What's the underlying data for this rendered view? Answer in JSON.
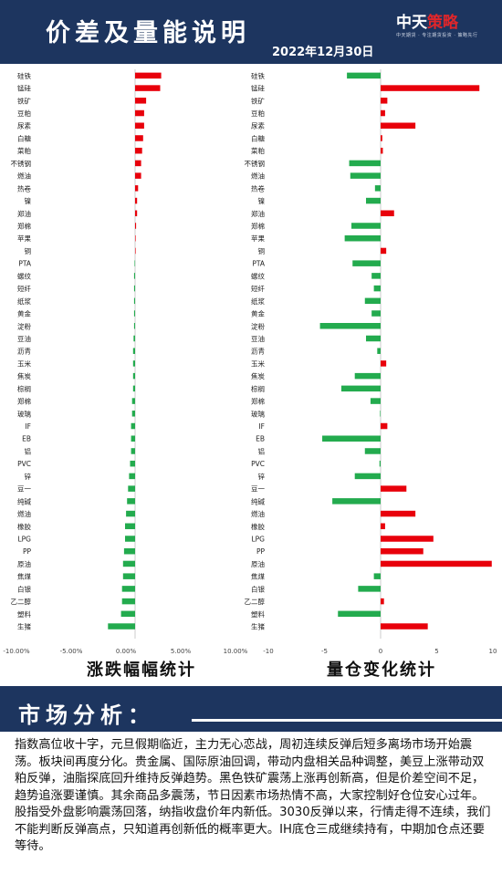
{
  "header": {
    "title": "价差及量能说明",
    "date": "2022年12月30日",
    "logo_main": "中天",
    "logo_accent": "策略",
    "logo_sub": "中天期货 · 专注期货投资 · 策略先行"
  },
  "chart_data": [
    {
      "type": "bar",
      "orientation": "horizontal",
      "title": "涨跌幅幅统计",
      "xlim": [
        -0.1,
        0.1
      ],
      "x_ticks": [
        "-10.00%",
        "-5.00%",
        "0.00%",
        "5.00%",
        "10.00%"
      ],
      "categories": [
        "硅铁",
        "锰硅",
        "铁矿",
        "豆粕",
        "尿素",
        "白糖",
        "菜粕",
        "不锈钢",
        "燃油",
        "热卷",
        "镍",
        "郑油",
        "郑棉",
        "苹果",
        "铜",
        "PTA",
        "螺纹",
        "短纤",
        "纸浆",
        "黄金",
        "淀粉",
        "豆油",
        "沥青",
        "玉米",
        "焦炭",
        "棕榈",
        "郑棉",
        "玻璃",
        "IF",
        "EB",
        "铝",
        "PVC",
        "锌",
        "豆一",
        "纯碱",
        "燃油",
        "橡胶",
        "LPG",
        "PP",
        "原油",
        "焦煤",
        "白银",
        "乙二醇",
        "塑料",
        "生猪"
      ],
      "values": [
        0.026,
        0.025,
        0.011,
        0.009,
        0.009,
        0.008,
        0.007,
        0.006,
        0.006,
        0.003,
        0.002,
        0.002,
        0.001,
        0.0005,
        0.0,
        -0.0005,
        -0.001,
        -0.001,
        -0.001,
        -0.001,
        -0.001,
        -0.0015,
        -0.002,
        -0.002,
        -0.002,
        -0.002,
        -0.003,
        -0.003,
        -0.004,
        -0.004,
        -0.004,
        -0.005,
        -0.006,
        -0.007,
        -0.008,
        -0.009,
        -0.01,
        -0.01,
        -0.011,
        -0.012,
        -0.012,
        -0.013,
        -0.013,
        -0.014,
        -0.027
      ],
      "positive_color": "#e8000b",
      "negative_color": "#23ab4e"
    },
    {
      "type": "bar",
      "orientation": "horizontal",
      "title": "量仓变化统计",
      "xlim": [
        -10,
        10
      ],
      "x_ticks": [
        "-10",
        "-5",
        "0",
        "5",
        "10"
      ],
      "categories": [
        "硅铁",
        "锰硅",
        "铁矿",
        "豆粕",
        "尿素",
        "白糖",
        "菜粕",
        "不锈钢",
        "燃油",
        "热卷",
        "镍",
        "郑油",
        "郑棉",
        "苹果",
        "铜",
        "PTA",
        "螺纹",
        "短纤",
        "纸浆",
        "黄金",
        "淀粉",
        "豆油",
        "沥青",
        "玉米",
        "焦炭",
        "棕榈",
        "郑棉",
        "玻璃",
        "IF",
        "EB",
        "铝",
        "PVC",
        "锌",
        "豆一",
        "纯碱",
        "燃油",
        "橡胶",
        "LPG",
        "PP",
        "原油",
        "焦煤",
        "白银",
        "乙二醇",
        "塑料",
        "生猪"
      ],
      "values": [
        -3.0,
        8.8,
        0.6,
        0.4,
        3.1,
        0.15,
        0.2,
        -2.8,
        -2.7,
        -0.5,
        -1.3,
        1.2,
        -2.6,
        -3.2,
        0.5,
        -2.5,
        -0.8,
        -0.6,
        -1.4,
        -0.8,
        -5.4,
        -1.3,
        -0.3,
        0.5,
        -2.3,
        -3.5,
        -0.9,
        -0.05,
        0.6,
        -5.2,
        -1.4,
        -0.1,
        -2.3,
        2.3,
        -4.3,
        3.1,
        0.4,
        4.7,
        3.8,
        9.9,
        -0.6,
        -2.0,
        0.3,
        -3.8,
        4.2
      ],
      "positive_color": "#e8000b",
      "negative_color": "#23ab4e"
    }
  ],
  "market": {
    "title": "市场分析：",
    "text": "指数高位收十字，元旦假期临近，主力无心恋战，周初连续反弹后短多离场市场开始震荡。板块间再度分化。贵金属、国际原油回调，带动内盘相关品种调整，美豆上涨带动双粕反弹，油脂探底回升维持反弹趋势。黑色铁矿震荡上涨再创新高，但是价差空间不足，趋势追涨要谨慎。其余商品多震荡，节日因素市场热情不高，大家控制好仓位安心过年。股指受外盘影响震荡回落，纳指收盘价年内新低。3030反弹以来，行情走得不连续，我们不能判断反弹高点，只知道再创新低的概率更大。IH底仓三成继续持有，中期加仓点还要等待。"
  }
}
